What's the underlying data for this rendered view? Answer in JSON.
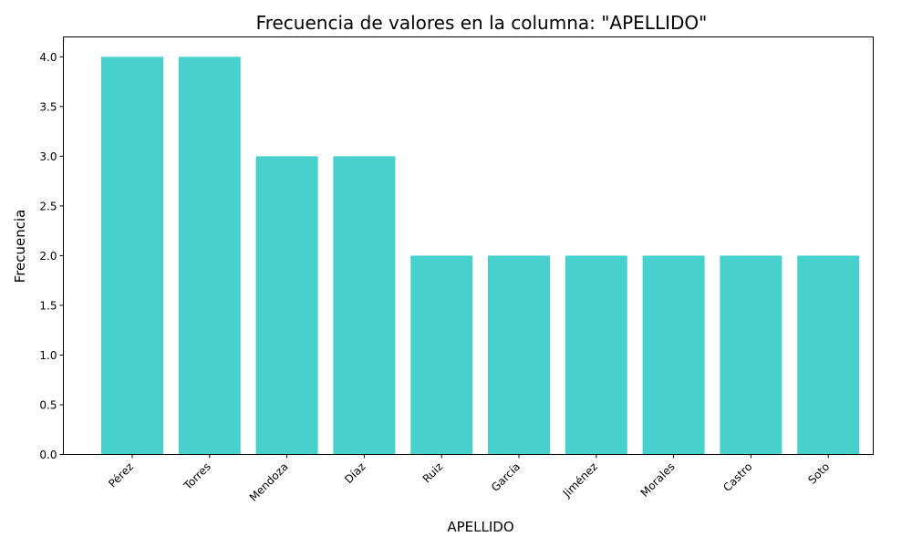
{
  "chart_data": {
    "type": "bar",
    "title": "Frecuencia de valores en la columna: \"APELLIDO\"",
    "xlabel": "APELLIDO",
    "ylabel": "Frecuencia",
    "categories": [
      "Pérez",
      "Torres",
      "Mendoza",
      "Díaz",
      "Ruiz",
      "García",
      "Jiménez",
      "Morales",
      "Castro",
      "Soto"
    ],
    "values": [
      4,
      4,
      3,
      3,
      2,
      2,
      2,
      2,
      2,
      2
    ],
    "ylim": [
      0,
      4.2
    ],
    "yticks": [
      "0.0",
      "0.5",
      "1.0",
      "1.5",
      "2.0",
      "2.5",
      "3.0",
      "3.5",
      "4.0"
    ],
    "bar_color": "#48D1CC",
    "grid": false,
    "legend": "none"
  }
}
